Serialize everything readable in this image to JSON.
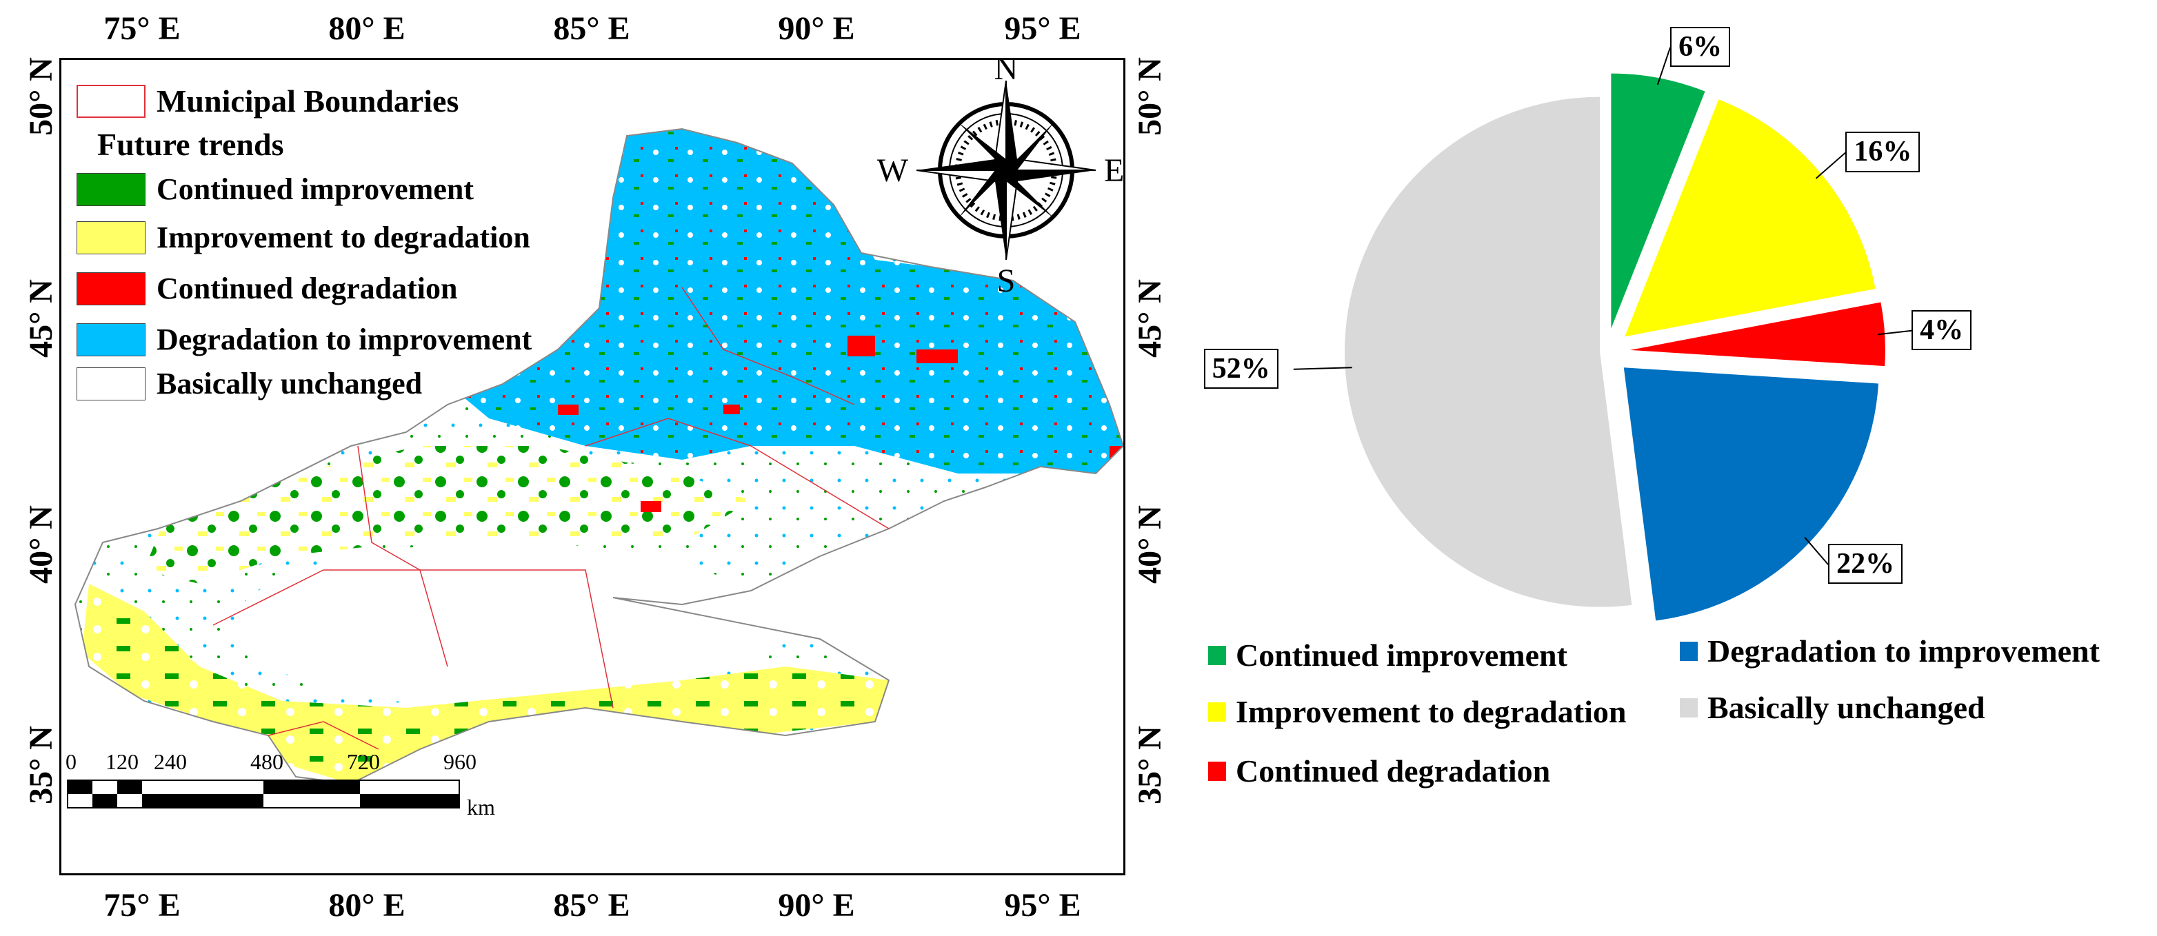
{
  "map": {
    "lon_labels": [
      "75° E",
      "80° E",
      "85° E",
      "90° E",
      "95° E"
    ],
    "lat_labels": [
      "50° N",
      "45° N",
      "40° N",
      "35° N"
    ],
    "compass": {
      "n": "N",
      "s": "S",
      "e": "E",
      "w": "W"
    },
    "legend": {
      "boundaries_label": "Municipal Boundaries",
      "trends_heading": "Future trends",
      "items": [
        {
          "label": "Continued improvement",
          "color": "#00a000"
        },
        {
          "label": "Improvement to degradation",
          "color": "#ffff66"
        },
        {
          "label": "Continued degradation",
          "color": "#ff0000"
        },
        {
          "label": "Degradation to improvement",
          "color": "#00bfff"
        },
        {
          "label": "Basically unchanged",
          "color": "#ffffff"
        }
      ],
      "boundary_color": "#e0303a"
    },
    "scale": {
      "labels": [
        "0",
        "120",
        "240",
        "480",
        "720",
        "960"
      ],
      "unit": "km"
    }
  },
  "chart_data": {
    "type": "pie",
    "slices": [
      {
        "name": "Continued improvement",
        "value": 6,
        "label": "6%",
        "color": "#00b050"
      },
      {
        "name": "Improvement to degradation",
        "value": 16,
        "label": "16%",
        "color": "#ffff00"
      },
      {
        "name": "Continued degradation",
        "value": 4,
        "label": "4%",
        "color": "#ff0000"
      },
      {
        "name": "Degradation to improvement",
        "value": 22,
        "label": "22%",
        "color": "#0070c0"
      },
      {
        "name": "Basically unchanged",
        "value": 52,
        "label": "52%",
        "color": "#d9d9d9"
      }
    ],
    "exploded": true,
    "legend_placement": "bottom",
    "legend": [
      {
        "label": "Continued improvement",
        "color": "#00b050"
      },
      {
        "label": "Degradation to improvement",
        "color": "#0070c0"
      },
      {
        "label": "Improvement to degradation",
        "color": "#ffff00"
      },
      {
        "label": "Basically unchanged",
        "color": "#d9d9d9"
      },
      {
        "label": "Continued degradation",
        "color": "#ff0000"
      }
    ]
  }
}
